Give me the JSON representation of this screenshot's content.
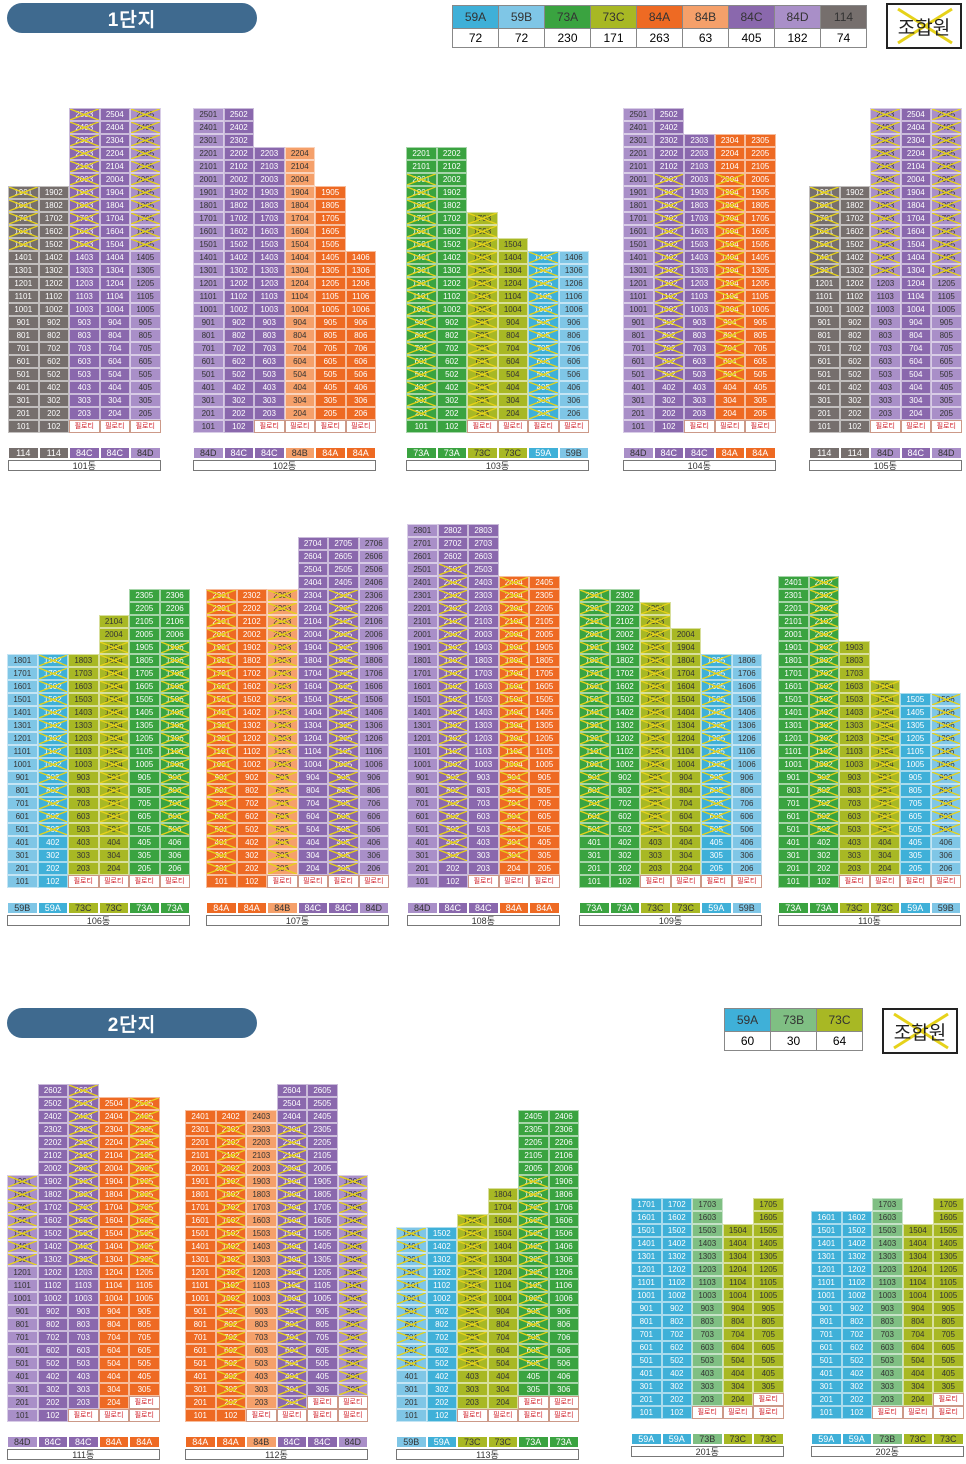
{
  "colors": {
    "59A": "#3fb0d8",
    "59B": "#7fc6e6",
    "73A": "#3aa340",
    "73B": "#7fbf83",
    "73C": "#a8b824",
    "84A": "#ee6a23",
    "84B": "#f5a06a",
    "84C": "#8a68ad",
    "84D": "#a98fc8",
    "114": "#766f6d"
  },
  "complex1": {
    "title": "1단지",
    "legend": {
      "types": [
        "59A",
        "59B",
        "73A",
        "73C",
        "84A",
        "84B",
        "84C",
        "84D",
        "114"
      ],
      "counts": [
        "72",
        "72",
        "230",
        "171",
        "263",
        "63",
        "405",
        "182",
        "74"
      ]
    },
    "union_label": "조합원"
  },
  "complex2": {
    "title": "2단지",
    "legend": {
      "types": [
        "59A",
        "73B",
        "73C"
      ],
      "counts": [
        "60",
        "30",
        "64"
      ]
    },
    "union_label": "조합원"
  },
  "piloti": "필로티",
  "buildings": [
    {
      "name": "101동",
      "types": [
        "114",
        "114",
        "84C",
        "84C",
        "84D"
      ],
      "tops": [
        19,
        19,
        25,
        25,
        25
      ]
    },
    {
      "name": "102동",
      "types": [
        "84D",
        "84C",
        "84C",
        "84B",
        "84A",
        "84A"
      ],
      "tops": [
        25,
        25,
        22,
        22,
        19,
        14
      ]
    },
    {
      "name": "103동",
      "types": [
        "73A",
        "73A",
        "73C",
        "73C",
        "59A",
        "59B"
      ],
      "tops": [
        22,
        22,
        17,
        15,
        14,
        14
      ]
    },
    {
      "name": "104동",
      "types": [
        "84D",
        "84C",
        "84C",
        "84A",
        "84A"
      ],
      "tops": [
        25,
        25,
        23,
        23,
        23
      ]
    },
    {
      "name": "105동",
      "types": [
        "114",
        "114",
        "84D",
        "84C",
        "84D"
      ],
      "tops": [
        19,
        19,
        25,
        25,
        25
      ]
    },
    {
      "name": "106동",
      "types": [
        "59B",
        "59A",
        "73C",
        "73C",
        "73A",
        "73A"
      ],
      "tops": [
        18,
        18,
        18,
        21,
        23,
        23
      ]
    },
    {
      "name": "107동",
      "types": [
        "84A",
        "84A",
        "84B",
        "84C",
        "84C",
        "84D"
      ],
      "tops": [
        23,
        23,
        23,
        27,
        27,
        27
      ]
    },
    {
      "name": "108동",
      "types": [
        "84D",
        "84C",
        "84C",
        "84A",
        "84A"
      ],
      "tops": [
        28,
        28,
        28,
        24,
        24
      ]
    },
    {
      "name": "109동",
      "types": [
        "73A",
        "73A",
        "73C",
        "73C",
        "59A",
        "59B"
      ],
      "tops": [
        23,
        23,
        22,
        20,
        18,
        18
      ]
    },
    {
      "name": "110동",
      "types": [
        "73A",
        "73A",
        "73C",
        "73C",
        "59A",
        "59B"
      ],
      "tops": [
        24,
        24,
        19,
        16,
        15,
        15
      ]
    },
    {
      "name": "111동",
      "types": [
        "84D",
        "84C",
        "84C",
        "84A",
        "84A"
      ],
      "tops": [
        19,
        26,
        26,
        25,
        25
      ]
    },
    {
      "name": "112동",
      "types": [
        "84A",
        "84A",
        "84B",
        "84C",
        "84C",
        "84D"
      ],
      "tops": [
        24,
        24,
        24,
        26,
        26,
        19
      ]
    },
    {
      "name": "113동",
      "types": [
        "59B",
        "59A",
        "73C",
        "73C",
        "73A",
        "73A"
      ],
      "tops": [
        15,
        15,
        16,
        18,
        24,
        24
      ]
    },
    {
      "name": "201동",
      "types": [
        "59A",
        "59A",
        "73B",
        "73C",
        "73C"
      ],
      "tops": [
        17,
        17,
        17,
        15,
        17
      ]
    },
    {
      "name": "202동",
      "types": [
        "59A",
        "59A",
        "73B",
        "73C",
        "73C"
      ],
      "tops": [
        16,
        16,
        17,
        15,
        17
      ]
    }
  ]
}
